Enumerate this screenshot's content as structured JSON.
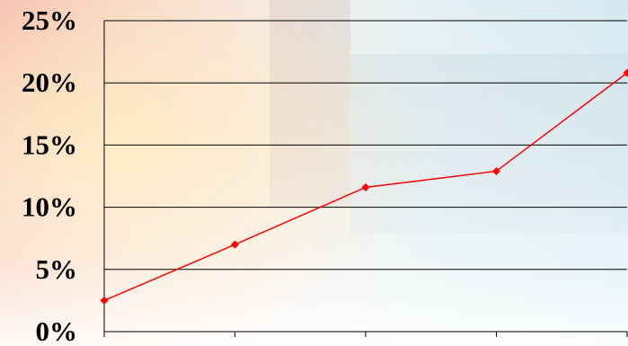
{
  "chart_data": {
    "type": "line",
    "title": "",
    "xlabel": "",
    "ylabel": "",
    "x": [
      1,
      2,
      3,
      4,
      5
    ],
    "series": [
      {
        "values": [
          2.5,
          7.0,
          11.6,
          12.9,
          20.8
        ]
      }
    ],
    "ylim": [
      0,
      25
    ],
    "yticks": [
      0,
      5,
      10,
      15,
      20,
      25
    ],
    "ytick_labels": [
      "0%",
      "5%",
      "10%",
      "15%",
      "20%",
      "25%"
    ],
    "grid": true,
    "legend": "none",
    "colors": {
      "line": "#ff0000",
      "marker": "#ff0000",
      "grid": "#000000"
    },
    "marker": "diamond"
  }
}
